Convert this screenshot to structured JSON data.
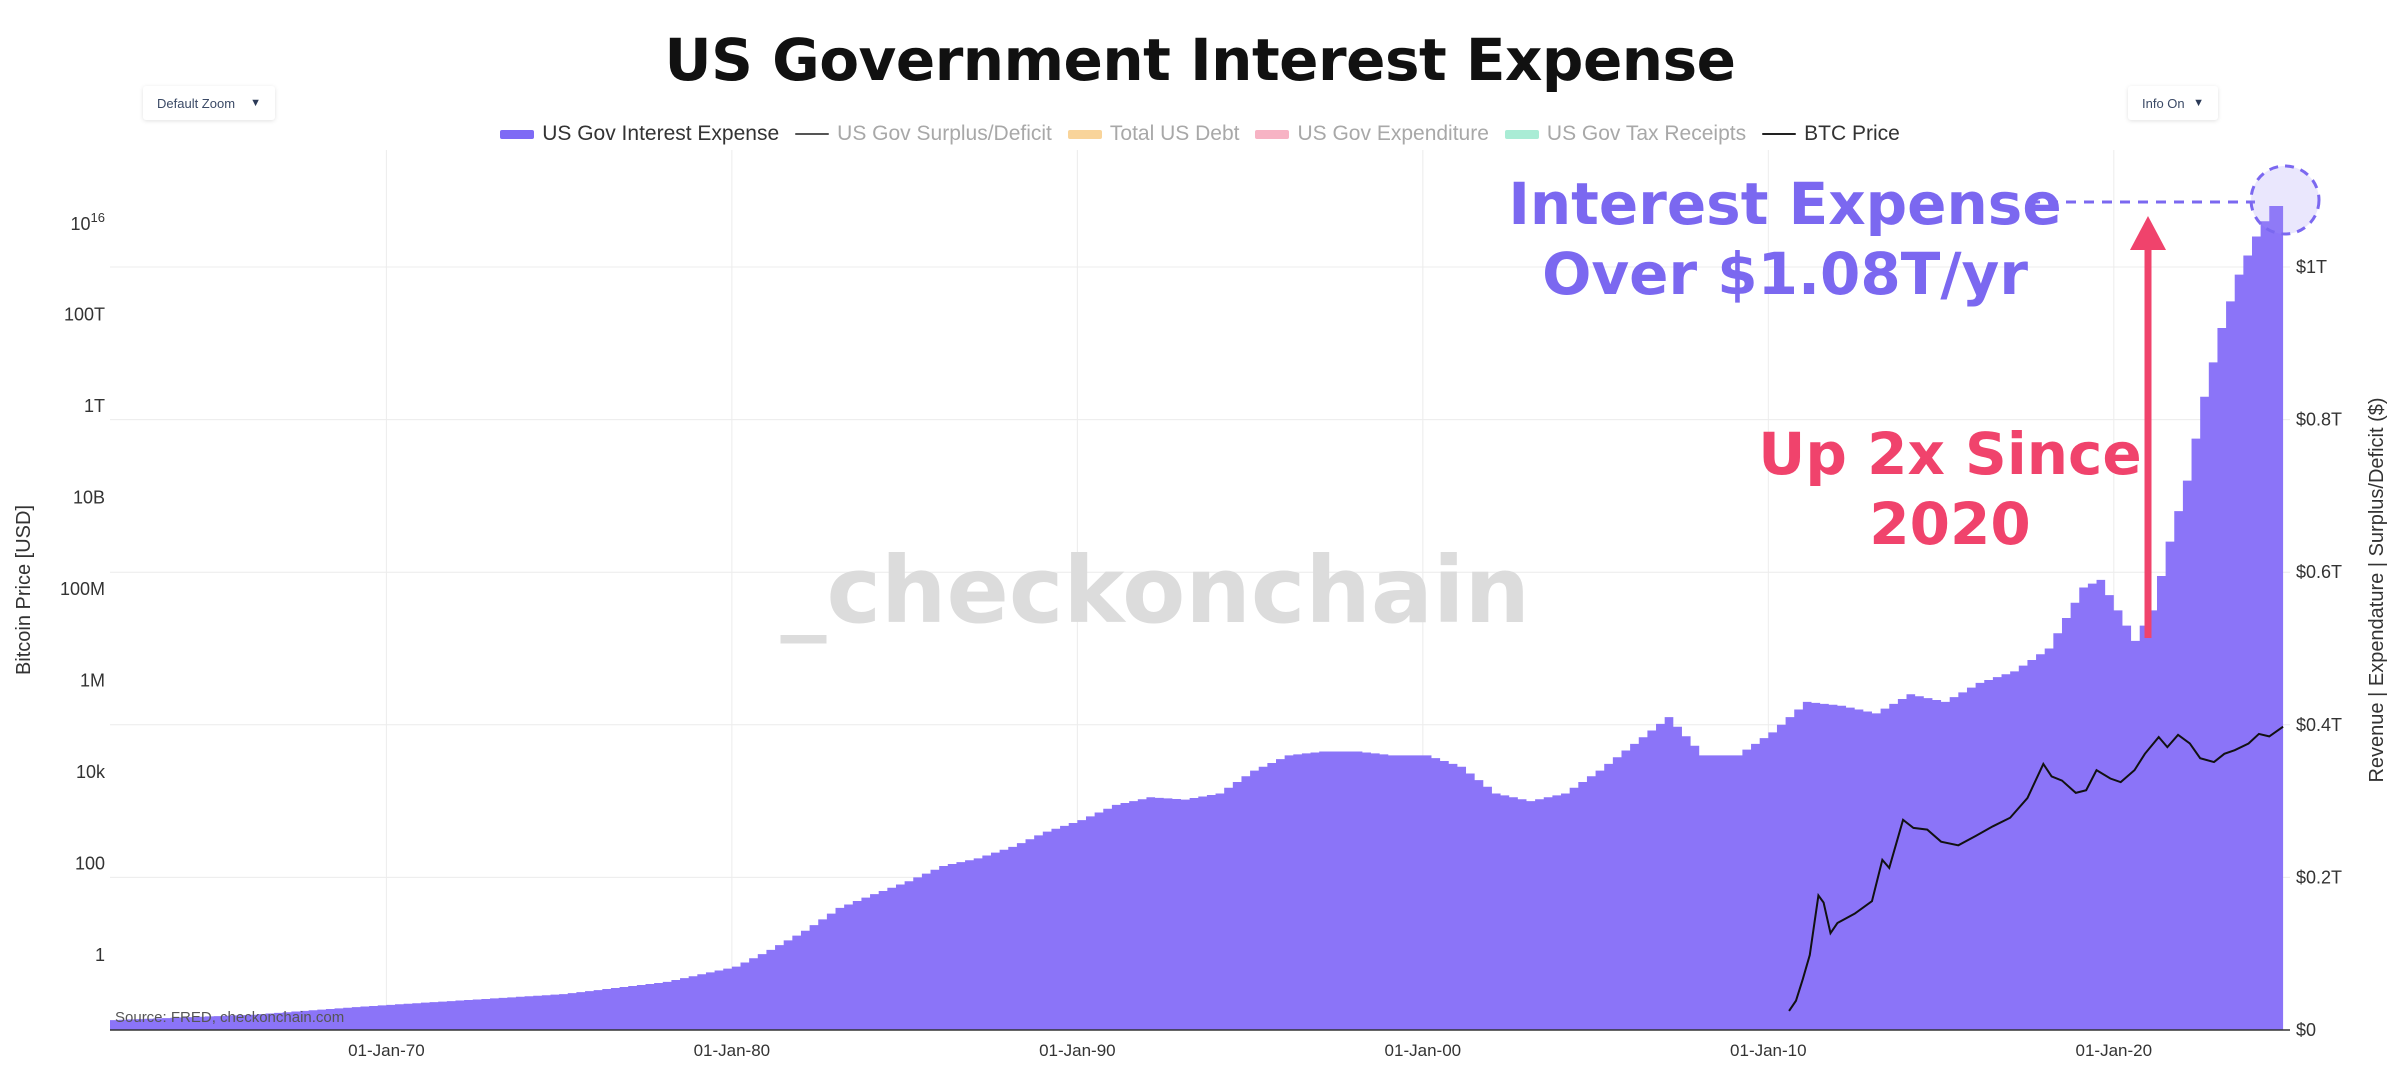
{
  "title": "US Government Interest Expense",
  "controls": {
    "zoom_label": "Default Zoom",
    "info_label": "Info On",
    "caret": "▼"
  },
  "legend": [
    {
      "label": "US Gov Interest Expense",
      "color": "#7e6af5",
      "active": true,
      "style": "bar"
    },
    {
      "label": "US Gov Surplus/Deficit",
      "color": "#555555",
      "active": false,
      "style": "line"
    },
    {
      "label": "Total US Debt",
      "color": "#f9d49a",
      "active": false,
      "style": "bar"
    },
    {
      "label": "US Gov Expenditure",
      "color": "#f7b3c4",
      "active": false,
      "style": "bar"
    },
    {
      "label": "US Gov Tax Receipts",
      "color": "#a9ecd5",
      "active": false,
      "style": "bar"
    },
    {
      "label": "BTC Price",
      "color": "#222222",
      "active": true,
      "style": "line"
    }
  ],
  "watermark": "_checkonchain",
  "source": "Source: FRED, checkonchain.com",
  "annotations": {
    "expense_line1": "Interest Expense",
    "expense_line2": "Over $1.08T/yr",
    "growth_line1": "Up 2x Since",
    "growth_line2": "2020"
  },
  "colors": {
    "area": "#8b74f8",
    "btc": "#111111",
    "accent_purple": "#7b68f0",
    "accent_pink": "#f0436c",
    "grid": "#ececec"
  },
  "chart_data": {
    "type": "area",
    "title": "US Government Interest Expense",
    "xlabel": "",
    "xlim": [
      "1962-01-01",
      "2025-02-01"
    ],
    "x_ticks": [
      "01-Jan-70",
      "01-Jan-80",
      "01-Jan-90",
      "01-Jan-00",
      "01-Jan-10",
      "01-Jan-20"
    ],
    "y_right_label": "Revenue | Expendature | Surplus/Deficit ($)",
    "y_right_ticks": [
      "$0",
      "$0.2T",
      "$0.4T",
      "$0.6T",
      "$0.8T",
      "$1T"
    ],
    "y_right_lim": [
      0,
      1.1
    ],
    "y_right_unit": "USD trillions",
    "y_left_label": "Bitcoin Price [USD]",
    "y_left_scale": "log",
    "y_left_ticks": [
      "1",
      "100",
      "10k",
      "1M",
      "100M",
      "10B",
      "1T",
      "100T"
    ],
    "y_left_top_tick": {
      "base": "10",
      "exp": "16"
    },
    "y_left_lim": [
      0.01,
      1e+17
    ],
    "series": [
      {
        "name": "US Gov Interest Expense",
        "axis": "right",
        "x": [
          1962.0,
          1966.0,
          1969.0,
          1970.0,
          1975.0,
          1978.0,
          1980.0,
          1981.0,
          1982.0,
          1983.0,
          1984.0,
          1985.0,
          1986.0,
          1987.0,
          1988.0,
          1989.0,
          1990.0,
          1991.0,
          1992.0,
          1993.0,
          1994.0,
          1995.0,
          1996.0,
          1997.0,
          1998.0,
          1999.0,
          2000.0,
          2001.0,
          2002.0,
          2003.0,
          2004.0,
          2005.0,
          2006.0,
          2007.0,
          2008.0,
          2009.0,
          2010.0,
          2011.0,
          2012.0,
          2013.0,
          2014.0,
          2015.0,
          2016.0,
          2017.0,
          2018.0,
          2019.0,
          2019.5,
          2020.5,
          2021.0,
          2021.5,
          2022.0,
          2022.5,
          2023.0,
          2023.5,
          2024.0,
          2024.5,
          2024.9
        ],
        "values": [
          0.013,
          0.02,
          0.03,
          0.033,
          0.047,
          0.063,
          0.083,
          0.105,
          0.13,
          0.16,
          0.178,
          0.195,
          0.215,
          0.225,
          0.24,
          0.26,
          0.275,
          0.295,
          0.305,
          0.302,
          0.31,
          0.34,
          0.36,
          0.365,
          0.365,
          0.36,
          0.36,
          0.345,
          0.31,
          0.3,
          0.31,
          0.34,
          0.375,
          0.41,
          0.36,
          0.36,
          0.39,
          0.43,
          0.425,
          0.415,
          0.44,
          0.43,
          0.455,
          0.47,
          0.5,
          0.58,
          0.59,
          0.51,
          0.55,
          0.64,
          0.72,
          0.83,
          0.92,
          0.99,
          1.04,
          1.08,
          1.08
        ]
      },
      {
        "name": "BTC Price",
        "axis": "left",
        "x": [
          2010.6,
          2010.8,
          2011.0,
          2011.2,
          2011.45,
          2011.6,
          2011.8,
          2012.0,
          2012.5,
          2013.0,
          2013.3,
          2013.5,
          2013.9,
          2014.2,
          2014.6,
          2015.0,
          2015.5,
          2016.0,
          2016.5,
          2017.0,
          2017.5,
          2017.96,
          2018.2,
          2018.5,
          2018.9,
          2019.2,
          2019.5,
          2019.9,
          2020.2,
          2020.6,
          2020.9,
          2021.3,
          2021.55,
          2021.86,
          2022.2,
          2022.5,
          2022.9,
          2023.2,
          2023.5,
          2023.9,
          2024.2,
          2024.5,
          2024.9
        ],
        "values": [
          0.06,
          0.1,
          0.3,
          1.0,
          20,
          14,
          3,
          5,
          8,
          15,
          120,
          80,
          900,
          600,
          550,
          300,
          250,
          400,
          650,
          1000,
          2700,
          15000,
          8000,
          6500,
          3500,
          4000,
          11000,
          7200,
          6000,
          11000,
          25000,
          58000,
          35000,
          65000,
          42000,
          20000,
          16500,
          25000,
          30000,
          42000,
          68000,
          60000,
          98000
        ]
      }
    ]
  }
}
